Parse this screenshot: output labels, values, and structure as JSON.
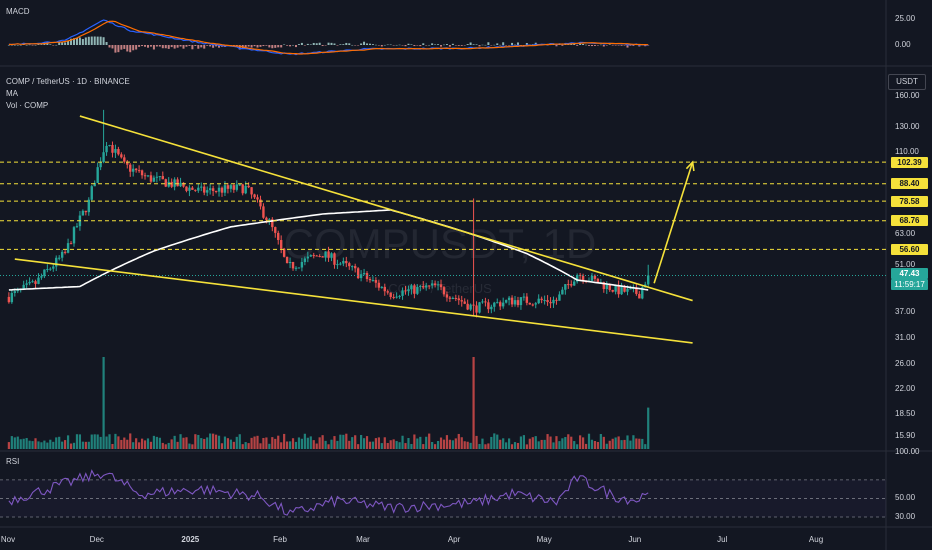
{
  "header": {
    "macd_title": "MACD",
    "symbol_line": "COMP / TetherUS · 1D · BINANCE",
    "ma_label": "MA",
    "vol_label": "Vol · COMP",
    "rsi_title": "RSI",
    "currency_button": "USDT"
  },
  "watermark": {
    "big": "COMPUSDT, 1D",
    "small": "COMP / TetherUS"
  },
  "colors": {
    "background": "#131722",
    "up": "#26a69a",
    "down": "#ef5350",
    "trendline": "#f5e13a",
    "level": "#f5e13a",
    "ma": "#ffffff",
    "rsi": "#7e57c2",
    "price_tag": "#26a69a"
  },
  "price_axis": {
    "ticks": [
      "160.00",
      "130.00",
      "110.00",
      "88.40",
      "78.58",
      "68.76",
      "63.00",
      "56.60",
      "51.00",
      "47.43",
      "37.00",
      "31.00",
      "26.00",
      "22.00",
      "18.50",
      "15.90"
    ],
    "levels": [
      {
        "value": 102.39,
        "label": "102.39"
      },
      {
        "value": 88.4,
        "label": "88.40"
      },
      {
        "value": 78.58,
        "label": "78.58"
      },
      {
        "value": 68.76,
        "label": "68.76"
      },
      {
        "value": 56.6,
        "label": "56.60"
      }
    ],
    "current_price": "47.43",
    "countdown": "11:59:17"
  },
  "macd_axis": {
    "ticks": [
      "25.00",
      "0.00"
    ]
  },
  "rsi_axis": {
    "ticks": [
      "100.00",
      "50.00",
      "30.00"
    ]
  },
  "time_axis": {
    "ticks": [
      "Nov",
      "Dec",
      "2025",
      "Feb",
      "Mar",
      "Apr",
      "May",
      "Jun",
      "Jul",
      "Aug"
    ]
  },
  "chart_data": {
    "type": "candlestick",
    "symbol": "COMP / TetherUS",
    "interval": "1D",
    "exchange": "BINANCE",
    "price_anchors": [
      {
        "date": "2024-11-01",
        "close": 41
      },
      {
        "date": "2024-11-10",
        "close": 45
      },
      {
        "date": "2024-11-20",
        "close": 55
      },
      {
        "date": "2024-11-28",
        "close": 78
      },
      {
        "date": "2024-12-04",
        "close": 118
      },
      {
        "date": "2024-12-10",
        "close": 100
      },
      {
        "date": "2024-12-18",
        "close": 92
      },
      {
        "date": "2025-01-05",
        "close": 84
      },
      {
        "date": "2025-01-20",
        "close": 86
      },
      {
        "date": "2025-01-28",
        "close": 68
      },
      {
        "date": "2025-02-03",
        "close": 50
      },
      {
        "date": "2025-02-15",
        "close": 55
      },
      {
        "date": "2025-03-01",
        "close": 47
      },
      {
        "date": "2025-03-10",
        "close": 42
      },
      {
        "date": "2025-03-25",
        "close": 44
      },
      {
        "date": "2025-04-07",
        "close": 38
      },
      {
        "date": "2025-04-20",
        "close": 40
      },
      {
        "date": "2025-05-05",
        "close": 40
      },
      {
        "date": "2025-05-12",
        "close": 48
      },
      {
        "date": "2025-05-25",
        "close": 43
      },
      {
        "date": "2025-06-02",
        "close": 42
      },
      {
        "date": "2025-06-05",
        "close": 47.43
      }
    ],
    "ma_anchors": [
      {
        "date": "2024-11-01",
        "value": 43
      },
      {
        "date": "2024-11-25",
        "value": 44
      },
      {
        "date": "2024-12-20",
        "value": 56
      },
      {
        "date": "2025-01-15",
        "value": 66
      },
      {
        "date": "2025-02-15",
        "value": 72
      },
      {
        "date": "2025-03-10",
        "value": 74
      },
      {
        "date": "2025-04-01",
        "value": 65
      },
      {
        "date": "2025-04-25",
        "value": 55
      },
      {
        "date": "2025-05-12",
        "value": 46
      },
      {
        "date": "2025-06-05",
        "value": 43
      }
    ],
    "trendlines": [
      {
        "name": "upper",
        "from": {
          "date": "2024-11-25",
          "price": 140
        },
        "to": {
          "date": "2025-06-20",
          "price": 40
        }
      },
      {
        "name": "lower",
        "from": {
          "date": "2024-11-03",
          "price": 53
        },
        "to": {
          "date": "2025-06-20",
          "price": 30
        }
      }
    ],
    "projection": {
      "from": {
        "date": "2025-06-07",
        "price": 45
      },
      "to": {
        "date": "2025-06-20",
        "price": 102.39
      }
    },
    "volume_spikes": [
      {
        "date": "2024-12-03",
        "relative": 1.0
      },
      {
        "date": "2025-04-07",
        "relative": 1.0
      },
      {
        "date": "2025-06-05",
        "relative": 0.45
      }
    ],
    "rsi_anchors": [
      {
        "date": "2024-11-01",
        "value": 48
      },
      {
        "date": "2024-11-20",
        "value": 66
      },
      {
        "date": "2024-12-03",
        "value": 78
      },
      {
        "date": "2024-12-15",
        "value": 55
      },
      {
        "date": "2025-01-05",
        "value": 60
      },
      {
        "date": "2025-01-25",
        "value": 52
      },
      {
        "date": "2025-02-04",
        "value": 33
      },
      {
        "date": "2025-02-20",
        "value": 48
      },
      {
        "date": "2025-03-10",
        "value": 40
      },
      {
        "date": "2025-04-07",
        "value": 45
      },
      {
        "date": "2025-04-20",
        "value": 55
      },
      {
        "date": "2025-05-05",
        "value": 46
      },
      {
        "date": "2025-05-12",
        "value": 72
      },
      {
        "date": "2025-05-25",
        "value": 52
      },
      {
        "date": "2025-06-02",
        "value": 48
      },
      {
        "date": "2025-06-05",
        "value": 62
      }
    ],
    "rsi_levels": [
      70,
      50,
      30
    ],
    "macd_anchors": [
      {
        "date": "2024-11-01",
        "value": 0
      },
      {
        "date": "2024-11-20",
        "value": 4
      },
      {
        "date": "2024-12-03",
        "value": 24
      },
      {
        "date": "2024-12-12",
        "value": 14
      },
      {
        "date": "2025-01-05",
        "value": 2
      },
      {
        "date": "2025-02-04",
        "value": -9
      },
      {
        "date": "2025-03-01",
        "value": -4
      },
      {
        "date": "2025-04-07",
        "value": -3
      },
      {
        "date": "2025-05-12",
        "value": 2
      },
      {
        "date": "2025-06-05",
        "value": 0
      }
    ]
  }
}
